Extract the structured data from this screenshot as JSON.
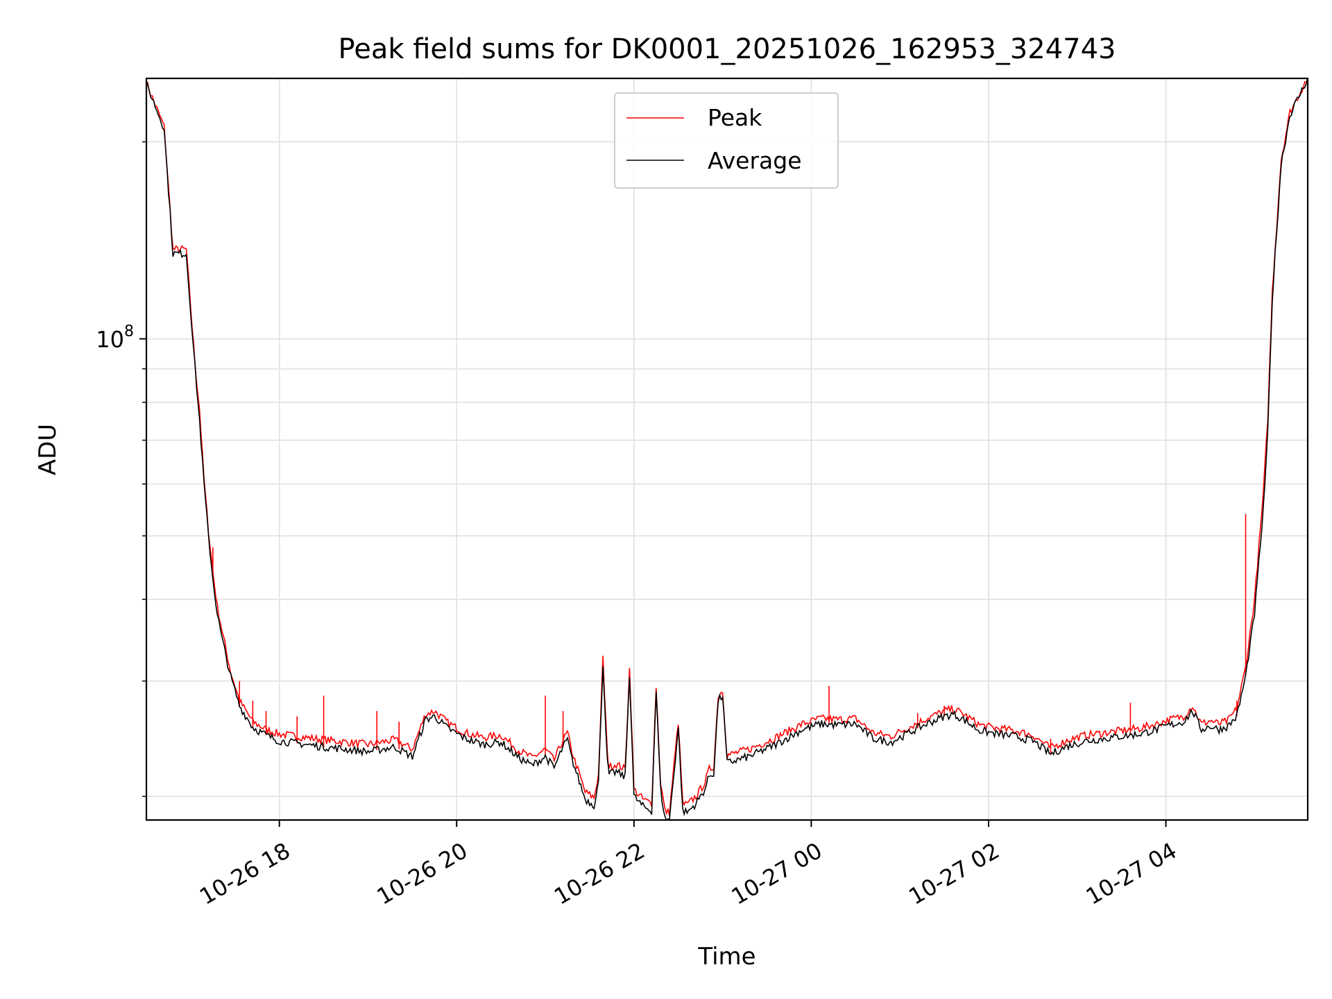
{
  "chart_data": {
    "type": "line",
    "title": "Peak field sums for DK0001_20251026_162953_324743",
    "xlabel": "Time",
    "ylabel": "ADU",
    "yscale": "log",
    "ylim": [
      18400000,
      250000000
    ],
    "x_unit": "hours since 2025-10-26 00:00",
    "xlim": [
      16.5,
      29.6
    ],
    "x_ticks": [
      {
        "value": 18,
        "label": "10-26 18"
      },
      {
        "value": 20,
        "label": "10-26 20"
      },
      {
        "value": 22,
        "label": "10-26 22"
      },
      {
        "value": 24,
        "label": "10-27 00"
      },
      {
        "value": 26,
        "label": "10-27 02"
      },
      {
        "value": 28,
        "label": "10-27 04"
      }
    ],
    "y_major_ticks": [
      {
        "value": 100000000,
        "base": "10",
        "exp": "8"
      }
    ],
    "y_minor_ticks": [
      20000000,
      30000000,
      40000000,
      50000000,
      60000000,
      70000000,
      80000000,
      90000000,
      200000000
    ],
    "grid": true,
    "legend": {
      "position": "top-center",
      "entries": [
        {
          "name": "Peak",
          "color": "#ff0000"
        },
        {
          "name": "Average",
          "color": "#000000"
        }
      ]
    },
    "series": [
      {
        "name": "Average",
        "color": "#000000",
        "x": [
          16.5,
          16.7,
          16.8,
          16.95,
          17.05,
          17.1,
          17.15,
          17.2,
          17.25,
          17.3,
          17.35,
          17.45,
          17.55,
          17.7,
          17.85,
          18.0,
          18.5,
          19.0,
          19.3,
          19.5,
          19.65,
          19.75,
          19.9,
          20.1,
          20.3,
          20.5,
          20.7,
          20.85,
          21.0,
          21.1,
          21.2,
          21.25,
          21.3,
          21.45,
          21.55,
          21.6,
          21.65,
          21.7,
          21.72,
          21.8,
          21.9,
          21.95,
          22.0,
          22.1,
          22.2,
          22.25,
          22.3,
          22.35,
          22.4,
          22.5,
          22.55,
          22.6,
          22.7,
          22.8,
          22.85,
          22.9,
          22.95,
          23.0,
          23.05,
          23.3,
          23.6,
          23.9,
          24.1,
          24.3,
          24.5,
          24.7,
          24.9,
          25.1,
          25.3,
          25.5,
          25.6,
          25.7,
          25.9,
          26.1,
          26.3,
          26.5,
          26.7,
          26.9,
          27.1,
          27.3,
          27.5,
          27.7,
          27.9,
          28.0,
          28.1,
          28.2,
          28.3,
          28.4,
          28.5,
          28.6,
          28.7,
          28.8,
          28.9,
          29.0,
          29.1,
          29.15,
          29.2,
          29.3,
          29.4,
          29.6
        ],
        "y": [
          245000000,
          210000000,
          135000000,
          135000000,
          90000000,
          75000000,
          60000000,
          50000000,
          43000000,
          38000000,
          35000000,
          30500000,
          27500000,
          25500000,
          24800000,
          24300000,
          23800000,
          23400000,
          23800000,
          23000000,
          26200000,
          26500000,
          25400000,
          24500000,
          24000000,
          24200000,
          22900000,
          22300000,
          23000000,
          22100000,
          23800000,
          24400000,
          22800000,
          19800000,
          19400000,
          21000000,
          32000000,
          22500000,
          21600000,
          21800000,
          21400000,
          30800000,
          20000000,
          19300000,
          19000000,
          29000000,
          20500000,
          18500000,
          18400000,
          25500000,
          19000000,
          18900000,
          19500000,
          20500000,
          21500000,
          21700000,
          28000000,
          28500000,
          22500000,
          23000000,
          24000000,
          25300000,
          25800000,
          25700000,
          25800000,
          24500000,
          24200000,
          25000000,
          25800000,
          26500000,
          26700000,
          26300000,
          25200000,
          24900000,
          24700000,
          24300000,
          23200000,
          23900000,
          24300000,
          24500000,
          24700000,
          24900000,
          25300000,
          25600000,
          25800000,
          26000000,
          27000000,
          25300000,
          25600000,
          25300000,
          25600000,
          26500000,
          30500000,
          38000000,
          55000000,
          72000000,
          115000000,
          185000000,
          220000000,
          250000000
        ]
      },
      {
        "name": "Peak",
        "color": "#ff0000",
        "x": [
          16.5,
          16.7,
          16.8,
          16.95,
          17.05,
          17.1,
          17.15,
          17.2,
          17.25,
          17.3,
          17.35,
          17.45,
          17.55,
          17.7,
          17.85,
          18.0,
          18.5,
          19.0,
          19.3,
          19.5,
          19.65,
          19.75,
          19.9,
          20.1,
          20.3,
          20.5,
          20.7,
          20.85,
          21.0,
          21.1,
          21.2,
          21.25,
          21.3,
          21.45,
          21.55,
          21.6,
          21.65,
          21.7,
          21.72,
          21.8,
          21.9,
          21.95,
          22.0,
          22.1,
          22.2,
          22.25,
          22.3,
          22.35,
          22.4,
          22.5,
          22.55,
          22.6,
          22.7,
          22.8,
          22.85,
          22.9,
          22.95,
          23.0,
          23.05,
          23.3,
          23.6,
          23.9,
          24.1,
          24.3,
          24.5,
          24.7,
          24.9,
          25.1,
          25.3,
          25.5,
          25.6,
          25.7,
          25.9,
          26.1,
          26.3,
          26.5,
          26.7,
          26.9,
          27.1,
          27.3,
          27.5,
          27.7,
          27.9,
          28.0,
          28.1,
          28.2,
          28.3,
          28.4,
          28.5,
          28.6,
          28.7,
          28.8,
          28.9,
          29.0,
          29.1,
          29.15,
          29.2,
          29.3,
          29.4,
          29.6
        ],
        "y": [
          246000000,
          211000000,
          137000000,
          137000000,
          91000000,
          78000000,
          61000000,
          51000000,
          44000000,
          39000000,
          36000000,
          31000000,
          28000000,
          26000000,
          25300000,
          24900000,
          24400000,
          24000000,
          24400000,
          23600000,
          26700000,
          27000000,
          25900000,
          25000000,
          24600000,
          24800000,
          23500000,
          22900000,
          23600000,
          22700000,
          24400000,
          25000000,
          23400000,
          20300000,
          19900000,
          21600000,
          32500000,
          23100000,
          22200000,
          22400000,
          22000000,
          31300000,
          20500000,
          19800000,
          19500000,
          29500000,
          21000000,
          19000000,
          18900000,
          26000000,
          19500000,
          19400000,
          20000000,
          21000000,
          22000000,
          22200000,
          28500000,
          29000000,
          23100000,
          23600000,
          24600000,
          25800000,
          26300000,
          26200000,
          26300000,
          25000000,
          24700000,
          25500000,
          26300000,
          27000000,
          27200000,
          26800000,
          25700000,
          25400000,
          25200000,
          24800000,
          23700000,
          24400000,
          24800000,
          25000000,
          25200000,
          25400000,
          25800000,
          26100000,
          26300000,
          26500000,
          27500000,
          25800000,
          26100000,
          25800000,
          26100000,
          27200000,
          31500000,
          40000000,
          58000000,
          76000000,
          118000000,
          188000000,
          222000000,
          251000000
        ],
        "spikes": [
          {
            "x": 17.25,
            "y": 48000000
          },
          {
            "x": 17.55,
            "y": 30000000
          },
          {
            "x": 17.7,
            "y": 28000000
          },
          {
            "x": 17.85,
            "y": 27000000
          },
          {
            "x": 18.2,
            "y": 26500000
          },
          {
            "x": 18.5,
            "y": 28500000
          },
          {
            "x": 19.1,
            "y": 27000000
          },
          {
            "x": 19.35,
            "y": 26000000
          },
          {
            "x": 21.0,
            "y": 28500000
          },
          {
            "x": 21.2,
            "y": 27000000
          },
          {
            "x": 24.2,
            "y": 29500000
          },
          {
            "x": 25.2,
            "y": 26800000
          },
          {
            "x": 25.5,
            "y": 27500000
          },
          {
            "x": 26.7,
            "y": 24500000
          },
          {
            "x": 27.6,
            "y": 27800000
          },
          {
            "x": 28.8,
            "y": 28000000
          },
          {
            "x": 28.9,
            "y": 54000000
          }
        ]
      }
    ]
  }
}
